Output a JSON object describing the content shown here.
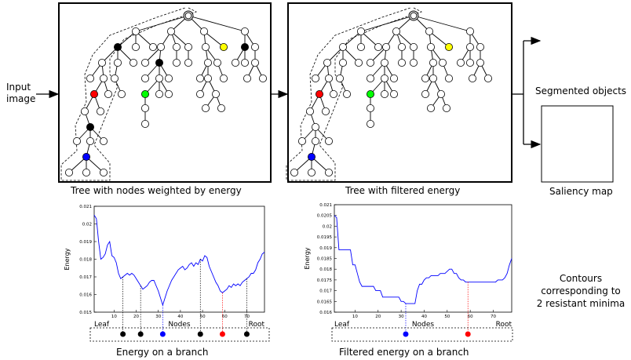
{
  "labels": {
    "input_image": [
      "Input",
      "image"
    ],
    "tree1_caption": "Tree with nodes weighted by energy",
    "tree2_caption": "Tree with filtered energy",
    "segmented_objects": "Segmented objects",
    "saliency_map": "Saliency map",
    "contours": [
      "Contours",
      "corresponding to",
      "2 resistant minima"
    ],
    "energy_caption": "Energy on a branch",
    "filtered_caption": "Filtered energy on a branch"
  },
  "colors": {
    "red": "#ff0000",
    "black": "#000000",
    "yellow": "#ffff00",
    "green": "#00ff00",
    "blue": "#0000ff",
    "curve": "#0000ff"
  },
  "chart_data": [
    {
      "type": "line",
      "xlabel": "Nodes",
      "ylabel": "Energy",
      "x_end_labels": [
        "Leaf",
        "Root"
      ],
      "xticks": [
        10,
        20,
        30,
        40,
        50,
        60,
        70
      ],
      "yticks": [
        "0.015",
        "0.016",
        "0.017",
        "0.018",
        "0.019",
        "0.02",
        "0.021"
      ],
      "xlim": [
        1,
        78
      ],
      "ylim": [
        0.015,
        0.021
      ],
      "markers": [
        {
          "x": 14,
          "color": "black"
        },
        {
          "x": 22,
          "color": "black"
        },
        {
          "x": 32,
          "color": "blue"
        },
        {
          "x": 49,
          "color": "black"
        },
        {
          "x": 59,
          "color": "red"
        },
        {
          "x": 70,
          "color": "black"
        }
      ],
      "series": [
        {
          "x": [
            1,
            2,
            3,
            4,
            5,
            6,
            7,
            8,
            9,
            10,
            11,
            12,
            13,
            14,
            15,
            16,
            17,
            18,
            19,
            20,
            21,
            22,
            23,
            24,
            25,
            26,
            27,
            28,
            29,
            30,
            31,
            32,
            33,
            34,
            35,
            36,
            37,
            38,
            39,
            40,
            41,
            42,
            43,
            44,
            45,
            46,
            47,
            48,
            49,
            50,
            51,
            52,
            53,
            54,
            55,
            56,
            57,
            58,
            59,
            60,
            61,
            62,
            63,
            64,
            65,
            66,
            67,
            68,
            69,
            70,
            71,
            72,
            73,
            74,
            75,
            76,
            77,
            78
          ],
          "y": [
            0.0205,
            0.0203,
            0.019,
            0.018,
            0.0181,
            0.0183,
            0.0188,
            0.019,
            0.0182,
            0.0181,
            0.0178,
            0.0172,
            0.0169,
            0.017,
            0.0171,
            0.0172,
            0.0171,
            0.0172,
            0.0171,
            0.0169,
            0.0167,
            0.0165,
            0.0163,
            0.0164,
            0.0165,
            0.0167,
            0.0168,
            0.0168,
            0.0165,
            0.0162,
            0.0158,
            0.0154,
            0.0158,
            0.0162,
            0.0165,
            0.0168,
            0.017,
            0.0172,
            0.0174,
            0.0175,
            0.0176,
            0.0174,
            0.0175,
            0.0177,
            0.0178,
            0.0176,
            0.0178,
            0.0177,
            0.018,
            0.0179,
            0.0182,
            0.0181,
            0.0176,
            0.0173,
            0.017,
            0.0167,
            0.0165,
            0.0162,
            0.0161,
            0.0162,
            0.0163,
            0.0165,
            0.0164,
            0.0166,
            0.0165,
            0.0166,
            0.0165,
            0.0167,
            0.0168,
            0.0169,
            0.017,
            0.0172,
            0.0172,
            0.0174,
            0.0178,
            0.018,
            0.0183,
            0.0184
          ]
        }
      ]
    },
    {
      "type": "line",
      "xlabel": "Nodes",
      "ylabel": "Energy",
      "x_end_labels": [
        "Leaf",
        "Root"
      ],
      "xticks": [
        10,
        20,
        30,
        40,
        50,
        60,
        70
      ],
      "yticks": [
        "0.016",
        "0.0165",
        "0.017",
        "0.0175",
        "0.018",
        "0.0185",
        "0.019",
        "0.0195",
        "0.02",
        "0.0205",
        "0.021"
      ],
      "xlim": [
        1,
        78
      ],
      "ylim": [
        0.016,
        0.021
      ],
      "markers": [
        {
          "x": 32,
          "color": "blue"
        },
        {
          "x": 59,
          "color": "red"
        }
      ],
      "series": [
        {
          "x": [
            1,
            2,
            3,
            4,
            5,
            6,
            7,
            8,
            9,
            10,
            11,
            12,
            13,
            14,
            15,
            16,
            17,
            18,
            19,
            20,
            21,
            22,
            23,
            24,
            25,
            26,
            27,
            28,
            29,
            30,
            31,
            32,
            33,
            34,
            35,
            36,
            37,
            38,
            39,
            40,
            41,
            42,
            43,
            44,
            45,
            46,
            47,
            48,
            49,
            50,
            51,
            52,
            53,
            54,
            55,
            56,
            57,
            58,
            59,
            60,
            61,
            62,
            63,
            64,
            65,
            66,
            67,
            68,
            69,
            70,
            71,
            72,
            73,
            74,
            75,
            76,
            77,
            78
          ],
          "y": [
            0.0205,
            0.0204,
            0.0189,
            0.0189,
            0.0189,
            0.0189,
            0.0189,
            0.0189,
            0.0182,
            0.0182,
            0.0178,
            0.0174,
            0.0172,
            0.0172,
            0.0172,
            0.0172,
            0.0172,
            0.0172,
            0.017,
            0.017,
            0.017,
            0.0167,
            0.0167,
            0.0167,
            0.0167,
            0.0167,
            0.0167,
            0.0167,
            0.0167,
            0.0165,
            0.0165,
            0.0164,
            0.0164,
            0.0164,
            0.0164,
            0.0164,
            0.017,
            0.0173,
            0.0173,
            0.0175,
            0.0176,
            0.0176,
            0.0177,
            0.0177,
            0.0177,
            0.0177,
            0.0178,
            0.0178,
            0.0178,
            0.0179,
            0.018,
            0.018,
            0.0178,
            0.0178,
            0.0176,
            0.0175,
            0.0175,
            0.0174,
            0.0174,
            0.0174,
            0.0174,
            0.0174,
            0.0174,
            0.0174,
            0.0174,
            0.0174,
            0.0174,
            0.0174,
            0.0174,
            0.0174,
            0.0174,
            0.0175,
            0.0175,
            0.0175,
            0.0176,
            0.0178,
            0.0182,
            0.0185
          ]
        }
      ]
    }
  ]
}
